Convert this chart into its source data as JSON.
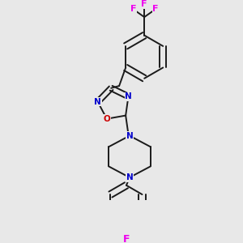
{
  "bg_color": "#e8e8e8",
  "bond_color": "#1a1a1a",
  "N_color": "#0000cc",
  "O_color": "#cc0000",
  "F_color": "#ee00ee",
  "lw": 1.4,
  "dbo": 0.006,
  "figsize": [
    3.0,
    3.0
  ],
  "dpi": 100,
  "xlim": [
    0,
    300
  ],
  "ylim": [
    0,
    300
  ]
}
